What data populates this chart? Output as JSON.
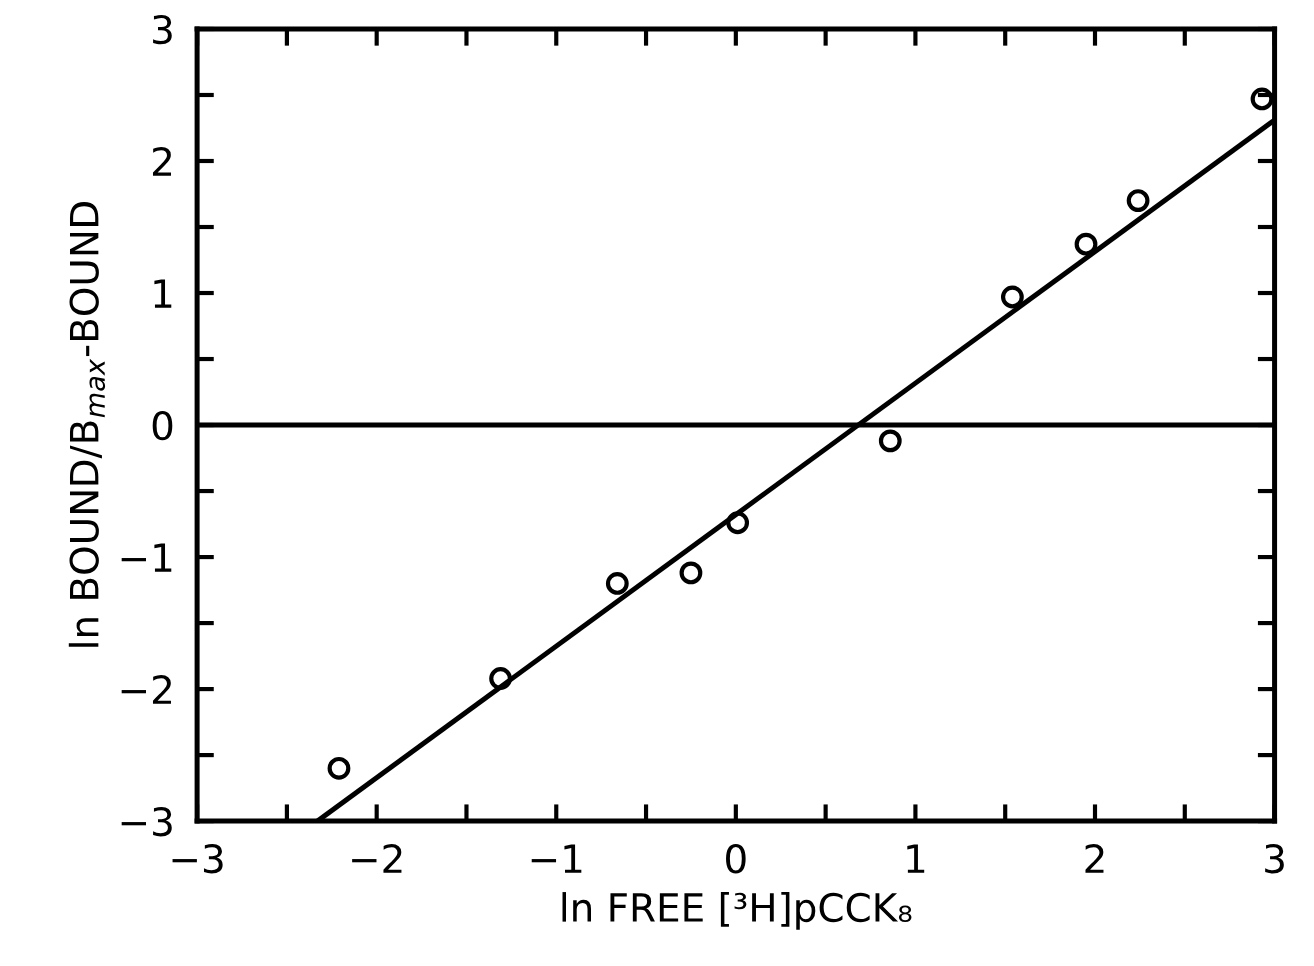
{
  "chart_data": {
    "type": "scatter",
    "xlabel": "ln FREE [³H]pCCK₈",
    "ylabel": "ln BOUND/B$_{max}$-BOUND",
    "series": [
      {
        "color": "#000000",
        "marker": "circle",
        "x": [
          -2.21,
          -1.31,
          -0.66,
          -0.25,
          0.01,
          0.86,
          1.54,
          1.95,
          2.24,
          2.93
        ],
        "values": [
          -2.6,
          -1.92,
          -1.2,
          -1.12,
          -0.74,
          -0.12,
          0.97,
          1.37,
          1.7,
          2.47
        ]
      },
      {
        "type": "line",
        "color": "#000000",
        "marker": "none",
        "line_style": "solid",
        "x": [
          -2.33,
          3
        ],
        "values": [
          -3,
          2.31
        ]
      }
    ],
    "ref_lines": [
      {
        "axis": "y",
        "value": 0,
        "color": "#000000",
        "line_style": "solid"
      }
    ],
    "xlim": [
      -3,
      3
    ],
    "ylim": [
      -3,
      3
    ],
    "xticks": [
      -3,
      {
        "value": -2.5,
        "label": null
      },
      -2,
      {
        "value": -1.5,
        "label": null
      },
      -1,
      {
        "value": -0.5,
        "label": null
      },
      0,
      {
        "value": 0.5,
        "label": null
      },
      1,
      {
        "value": 1.5,
        "label": null
      },
      2,
      {
        "value": 2.5,
        "label": null
      },
      3
    ],
    "yticks": [
      -3,
      {
        "value": -2.5,
        "label": null
      },
      -2,
      {
        "value": -1.5,
        "label": null
      },
      -1,
      {
        "value": -0.5,
        "label": null
      },
      0,
      {
        "value": 0.5,
        "label": null
      },
      1,
      {
        "value": 1.5,
        "label": null
      },
      2,
      {
        "value": 2.5,
        "label": null
      },
      3
    ],
    "grid": false
  }
}
